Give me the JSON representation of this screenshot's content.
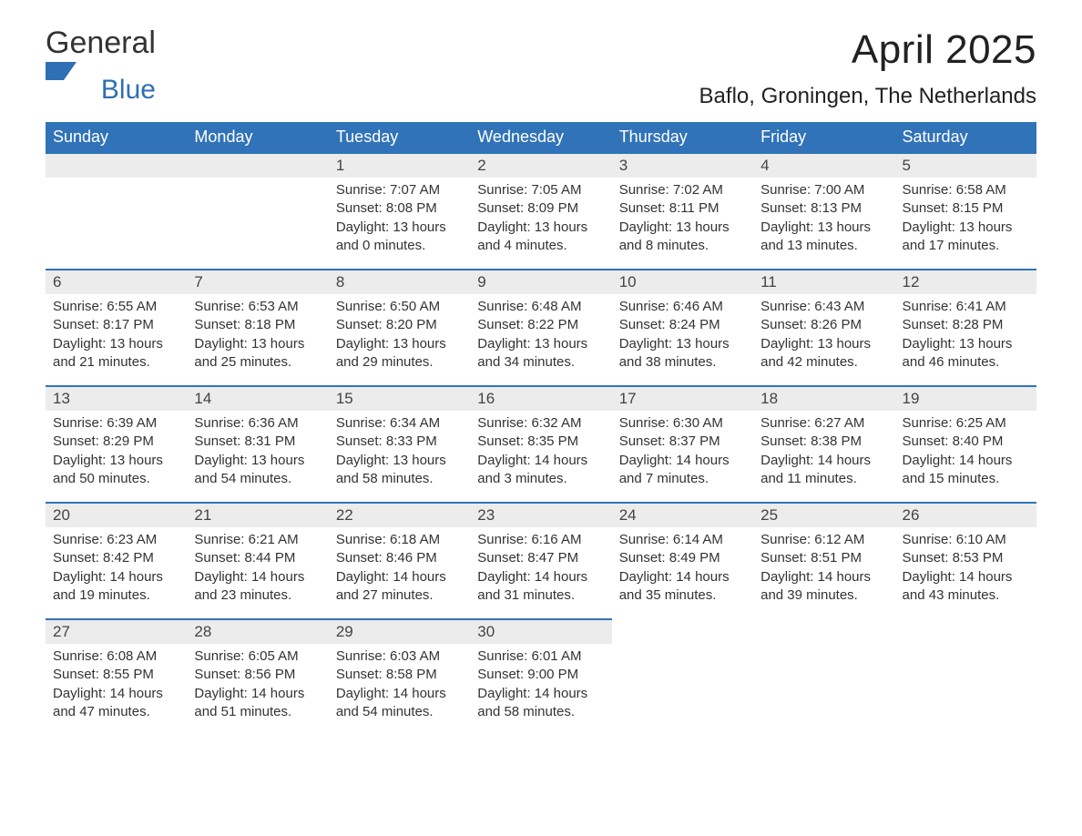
{
  "brand": {
    "name_part1": "General",
    "name_part2": "Blue",
    "logo_fill": "#2f6fb5",
    "text_color": "#333333"
  },
  "title": {
    "month": "April 2025",
    "location": "Baflo, Groningen, The Netherlands",
    "title_fontsize": 44,
    "location_fontsize": 24
  },
  "colors": {
    "header_bg": "#3173b8",
    "header_text": "#ffffff",
    "daynum_bg": "#ececec",
    "daynum_border": "#3173b8",
    "body_bg": "#ffffff",
    "text": "#333333"
  },
  "daynames": [
    "Sunday",
    "Monday",
    "Tuesday",
    "Wednesday",
    "Thursday",
    "Friday",
    "Saturday"
  ],
  "weeks": [
    [
      null,
      null,
      {
        "n": "1",
        "sunrise": "Sunrise: 7:07 AM",
        "sunset": "Sunset: 8:08 PM",
        "daylight": "Daylight: 13 hours and 0 minutes."
      },
      {
        "n": "2",
        "sunrise": "Sunrise: 7:05 AM",
        "sunset": "Sunset: 8:09 PM",
        "daylight": "Daylight: 13 hours and 4 minutes."
      },
      {
        "n": "3",
        "sunrise": "Sunrise: 7:02 AM",
        "sunset": "Sunset: 8:11 PM",
        "daylight": "Daylight: 13 hours and 8 minutes."
      },
      {
        "n": "4",
        "sunrise": "Sunrise: 7:00 AM",
        "sunset": "Sunset: 8:13 PM",
        "daylight": "Daylight: 13 hours and 13 minutes."
      },
      {
        "n": "5",
        "sunrise": "Sunrise: 6:58 AM",
        "sunset": "Sunset: 8:15 PM",
        "daylight": "Daylight: 13 hours and 17 minutes."
      }
    ],
    [
      {
        "n": "6",
        "sunrise": "Sunrise: 6:55 AM",
        "sunset": "Sunset: 8:17 PM",
        "daylight": "Daylight: 13 hours and 21 minutes."
      },
      {
        "n": "7",
        "sunrise": "Sunrise: 6:53 AM",
        "sunset": "Sunset: 8:18 PM",
        "daylight": "Daylight: 13 hours and 25 minutes."
      },
      {
        "n": "8",
        "sunrise": "Sunrise: 6:50 AM",
        "sunset": "Sunset: 8:20 PM",
        "daylight": "Daylight: 13 hours and 29 minutes."
      },
      {
        "n": "9",
        "sunrise": "Sunrise: 6:48 AM",
        "sunset": "Sunset: 8:22 PM",
        "daylight": "Daylight: 13 hours and 34 minutes."
      },
      {
        "n": "10",
        "sunrise": "Sunrise: 6:46 AM",
        "sunset": "Sunset: 8:24 PM",
        "daylight": "Daylight: 13 hours and 38 minutes."
      },
      {
        "n": "11",
        "sunrise": "Sunrise: 6:43 AM",
        "sunset": "Sunset: 8:26 PM",
        "daylight": "Daylight: 13 hours and 42 minutes."
      },
      {
        "n": "12",
        "sunrise": "Sunrise: 6:41 AM",
        "sunset": "Sunset: 8:28 PM",
        "daylight": "Daylight: 13 hours and 46 minutes."
      }
    ],
    [
      {
        "n": "13",
        "sunrise": "Sunrise: 6:39 AM",
        "sunset": "Sunset: 8:29 PM",
        "daylight": "Daylight: 13 hours and 50 minutes."
      },
      {
        "n": "14",
        "sunrise": "Sunrise: 6:36 AM",
        "sunset": "Sunset: 8:31 PM",
        "daylight": "Daylight: 13 hours and 54 minutes."
      },
      {
        "n": "15",
        "sunrise": "Sunrise: 6:34 AM",
        "sunset": "Sunset: 8:33 PM",
        "daylight": "Daylight: 13 hours and 58 minutes."
      },
      {
        "n": "16",
        "sunrise": "Sunrise: 6:32 AM",
        "sunset": "Sunset: 8:35 PM",
        "daylight": "Daylight: 14 hours and 3 minutes."
      },
      {
        "n": "17",
        "sunrise": "Sunrise: 6:30 AM",
        "sunset": "Sunset: 8:37 PM",
        "daylight": "Daylight: 14 hours and 7 minutes."
      },
      {
        "n": "18",
        "sunrise": "Sunrise: 6:27 AM",
        "sunset": "Sunset: 8:38 PM",
        "daylight": "Daylight: 14 hours and 11 minutes."
      },
      {
        "n": "19",
        "sunrise": "Sunrise: 6:25 AM",
        "sunset": "Sunset: 8:40 PM",
        "daylight": "Daylight: 14 hours and 15 minutes."
      }
    ],
    [
      {
        "n": "20",
        "sunrise": "Sunrise: 6:23 AM",
        "sunset": "Sunset: 8:42 PM",
        "daylight": "Daylight: 14 hours and 19 minutes."
      },
      {
        "n": "21",
        "sunrise": "Sunrise: 6:21 AM",
        "sunset": "Sunset: 8:44 PM",
        "daylight": "Daylight: 14 hours and 23 minutes."
      },
      {
        "n": "22",
        "sunrise": "Sunrise: 6:18 AM",
        "sunset": "Sunset: 8:46 PM",
        "daylight": "Daylight: 14 hours and 27 minutes."
      },
      {
        "n": "23",
        "sunrise": "Sunrise: 6:16 AM",
        "sunset": "Sunset: 8:47 PM",
        "daylight": "Daylight: 14 hours and 31 minutes."
      },
      {
        "n": "24",
        "sunrise": "Sunrise: 6:14 AM",
        "sunset": "Sunset: 8:49 PM",
        "daylight": "Daylight: 14 hours and 35 minutes."
      },
      {
        "n": "25",
        "sunrise": "Sunrise: 6:12 AM",
        "sunset": "Sunset: 8:51 PM",
        "daylight": "Daylight: 14 hours and 39 minutes."
      },
      {
        "n": "26",
        "sunrise": "Sunrise: 6:10 AM",
        "sunset": "Sunset: 8:53 PM",
        "daylight": "Daylight: 14 hours and 43 minutes."
      }
    ],
    [
      {
        "n": "27",
        "sunrise": "Sunrise: 6:08 AM",
        "sunset": "Sunset: 8:55 PM",
        "daylight": "Daylight: 14 hours and 47 minutes."
      },
      {
        "n": "28",
        "sunrise": "Sunrise: 6:05 AM",
        "sunset": "Sunset: 8:56 PM",
        "daylight": "Daylight: 14 hours and 51 minutes."
      },
      {
        "n": "29",
        "sunrise": "Sunrise: 6:03 AM",
        "sunset": "Sunset: 8:58 PM",
        "daylight": "Daylight: 14 hours and 54 minutes."
      },
      {
        "n": "30",
        "sunrise": "Sunrise: 6:01 AM",
        "sunset": "Sunset: 9:00 PM",
        "daylight": "Daylight: 14 hours and 58 minutes."
      },
      null,
      null,
      null
    ]
  ]
}
